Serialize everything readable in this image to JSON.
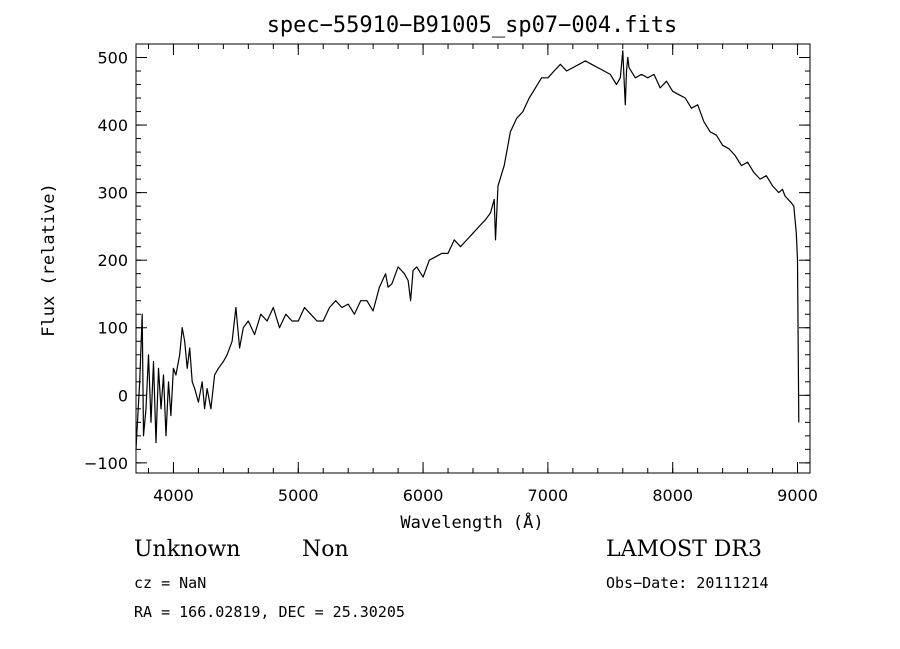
{
  "chart_data": {
    "type": "line",
    "title": "spec−55910−B91005_sp07−004.fits",
    "xlabel": "Wavelength (Å)",
    "ylabel": "Flux (relative)",
    "xlim": [
      3700,
      9100
    ],
    "ylim": [
      -115,
      520
    ],
    "x_ticks": [
      4000,
      5000,
      6000,
      7000,
      8000,
      9000
    ],
    "x_tick_labels": [
      "4000",
      "5000",
      "6000",
      "7000",
      "8000",
      "9000"
    ],
    "y_ticks": [
      -100,
      0,
      100,
      200,
      300,
      400,
      500
    ],
    "y_tick_labels": [
      "−100",
      "0",
      "100",
      "200",
      "300",
      "400",
      "500"
    ],
    "x_minor_step": 200,
    "y_minor_step": 20,
    "series": [
      {
        "name": "flux",
        "x": [
          3700,
          3730,
          3750,
          3760,
          3780,
          3800,
          3820,
          3840,
          3860,
          3880,
          3900,
          3920,
          3940,
          3960,
          3980,
          4000,
          4020,
          4050,
          4070,
          4090,
          4110,
          4130,
          4150,
          4170,
          4200,
          4230,
          4250,
          4270,
          4300,
          4330,
          4360,
          4400,
          4430,
          4470,
          4500,
          4530,
          4560,
          4600,
          4650,
          4700,
          4750,
          4800,
          4850,
          4900,
          4950,
          5000,
          5050,
          5100,
          5150,
          5200,
          5250,
          5300,
          5350,
          5400,
          5450,
          5500,
          5550,
          5600,
          5650,
          5700,
          5720,
          5750,
          5800,
          5850,
          5880,
          5900,
          5920,
          5950,
          6000,
          6050,
          6100,
          6150,
          6200,
          6250,
          6300,
          6350,
          6400,
          6450,
          6500,
          6540,
          6570,
          6580,
          6600,
          6650,
          6700,
          6750,
          6800,
          6850,
          6900,
          6950,
          7000,
          7050,
          7100,
          7150,
          7200,
          7250,
          7300,
          7350,
          7400,
          7450,
          7500,
          7550,
          7580,
          7600,
          7610,
          7620,
          7630,
          7640,
          7650,
          7700,
          7750,
          7800,
          7850,
          7900,
          7950,
          8000,
          8050,
          8100,
          8150,
          8200,
          8250,
          8300,
          8350,
          8400,
          8450,
          8500,
          8550,
          8600,
          8650,
          8700,
          8750,
          8800,
          8850,
          8880,
          8900,
          8950,
          8970,
          8990,
          9000,
          9010
        ],
        "values": [
          -80,
          20,
          120,
          -60,
          -20,
          60,
          -40,
          50,
          -70,
          40,
          -20,
          30,
          -60,
          20,
          -30,
          40,
          30,
          60,
          100,
          80,
          40,
          70,
          20,
          10,
          -10,
          20,
          -20,
          10,
          -20,
          30,
          40,
          50,
          60,
          80,
          130,
          70,
          100,
          110,
          90,
          120,
          110,
          130,
          100,
          120,
          110,
          110,
          130,
          120,
          110,
          110,
          130,
          140,
          130,
          135,
          120,
          140,
          140,
          125,
          160,
          180,
          160,
          165,
          190,
          180,
          170,
          140,
          185,
          190,
          175,
          200,
          205,
          210,
          210,
          230,
          220,
          230,
          240,
          250,
          260,
          270,
          290,
          230,
          310,
          340,
          390,
          410,
          420,
          440,
          455,
          470,
          470,
          480,
          490,
          480,
          485,
          490,
          495,
          490,
          485,
          480,
          475,
          460,
          470,
          510,
          470,
          430,
          480,
          500,
          485,
          470,
          475,
          470,
          475,
          455,
          465,
          450,
          445,
          440,
          425,
          430,
          405,
          390,
          385,
          370,
          365,
          355,
          340,
          345,
          330,
          320,
          325,
          310,
          300,
          305,
          295,
          285,
          280,
          240,
          200,
          -40
        ]
      }
    ]
  },
  "info": {
    "object_class": "Unknown",
    "subclass": "Non",
    "survey": "LAMOST DR3",
    "cz": "cz = NaN",
    "obs_date": "Obs−Date: 20111214",
    "coords": "RA = 166.02819, DEC =  25.30205"
  }
}
